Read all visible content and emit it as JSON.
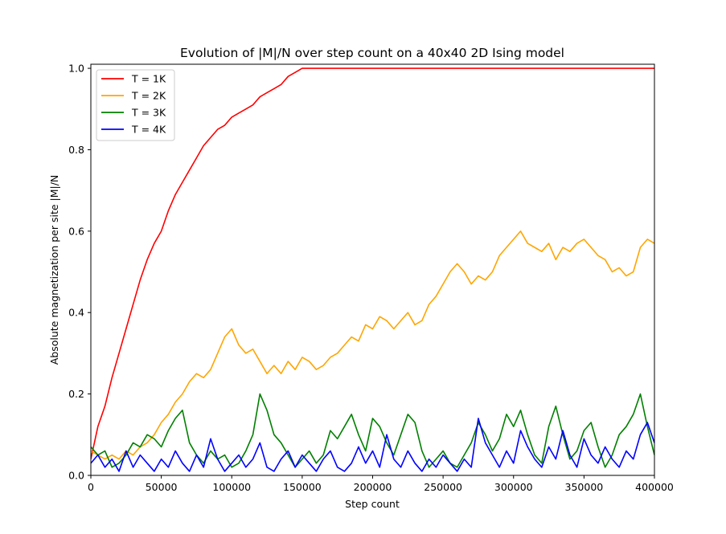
{
  "chart_data": {
    "type": "line",
    "title": "Evolution of |M|/N over step count on a 40x40 2D Ising model",
    "xlabel": "Step count",
    "ylabel": "Absolute magnetization per site |M|/N",
    "xlim": [
      0,
      400000
    ],
    "ylim": [
      0,
      1.01
    ],
    "x_ticks": [
      0,
      50000,
      100000,
      150000,
      200000,
      250000,
      300000,
      350000,
      400000
    ],
    "x_tick_labels": [
      "0",
      "50000",
      "100000",
      "150000",
      "200000",
      "250000",
      "300000",
      "350000",
      "400000"
    ],
    "y_ticks": [
      0.0,
      0.2,
      0.4,
      0.6,
      0.8,
      1.0
    ],
    "y_tick_labels": [
      "0.0",
      "0.2",
      "0.4",
      "0.6",
      "0.8",
      "1.0"
    ],
    "grid": false,
    "legend_position": "top-left",
    "series": [
      {
        "name": "T = 1K",
        "color": "#ff0000",
        "x": [
          0,
          5000,
          10000,
          15000,
          20000,
          25000,
          30000,
          35000,
          40000,
          45000,
          50000,
          55000,
          60000,
          65000,
          70000,
          75000,
          80000,
          85000,
          90000,
          95000,
          100000,
          105000,
          110000,
          115000,
          120000,
          125000,
          130000,
          135000,
          140000,
          145000,
          150000,
          155000,
          160000,
          170000,
          180000,
          200000,
          220000,
          240000,
          260000,
          280000,
          300000,
          320000,
          340000,
          360000,
          380000,
          400000
        ],
        "y": [
          0.04,
          0.12,
          0.17,
          0.24,
          0.3,
          0.36,
          0.42,
          0.48,
          0.53,
          0.57,
          0.6,
          0.65,
          0.69,
          0.72,
          0.75,
          0.78,
          0.81,
          0.83,
          0.85,
          0.86,
          0.88,
          0.89,
          0.9,
          0.91,
          0.93,
          0.94,
          0.95,
          0.96,
          0.98,
          0.99,
          1.0,
          1.0,
          1.0,
          1.0,
          1.0,
          1.0,
          1.0,
          1.0,
          1.0,
          1.0,
          1.0,
          1.0,
          1.0,
          1.0,
          1.0,
          1.0
        ]
      },
      {
        "name": "T = 2K",
        "color": "#ffa500",
        "x": [
          0,
          5000,
          10000,
          15000,
          20000,
          25000,
          30000,
          35000,
          40000,
          45000,
          50000,
          55000,
          60000,
          65000,
          70000,
          75000,
          80000,
          85000,
          90000,
          95000,
          100000,
          105000,
          110000,
          115000,
          120000,
          125000,
          130000,
          135000,
          140000,
          145000,
          150000,
          155000,
          160000,
          165000,
          170000,
          175000,
          180000,
          185000,
          190000,
          195000,
          200000,
          205000,
          210000,
          215000,
          220000,
          225000,
          230000,
          235000,
          240000,
          245000,
          250000,
          255000,
          260000,
          265000,
          270000,
          275000,
          280000,
          285000,
          290000,
          295000,
          300000,
          305000,
          310000,
          315000,
          320000,
          325000,
          330000,
          335000,
          340000,
          345000,
          350000,
          355000,
          360000,
          365000,
          370000,
          375000,
          380000,
          385000,
          390000,
          395000,
          400000
        ],
        "y": [
          0.06,
          0.05,
          0.04,
          0.05,
          0.04,
          0.06,
          0.05,
          0.07,
          0.08,
          0.1,
          0.13,
          0.15,
          0.18,
          0.2,
          0.23,
          0.25,
          0.24,
          0.26,
          0.3,
          0.34,
          0.36,
          0.32,
          0.3,
          0.31,
          0.28,
          0.25,
          0.27,
          0.25,
          0.28,
          0.26,
          0.29,
          0.28,
          0.26,
          0.27,
          0.29,
          0.3,
          0.32,
          0.34,
          0.33,
          0.37,
          0.36,
          0.39,
          0.38,
          0.36,
          0.38,
          0.4,
          0.37,
          0.38,
          0.42,
          0.44,
          0.47,
          0.5,
          0.52,
          0.5,
          0.47,
          0.49,
          0.48,
          0.5,
          0.54,
          0.56,
          0.58,
          0.6,
          0.57,
          0.56,
          0.55,
          0.57,
          0.53,
          0.56,
          0.55,
          0.57,
          0.58,
          0.56,
          0.54,
          0.53,
          0.5,
          0.51,
          0.49,
          0.5,
          0.56,
          0.58,
          0.57
        ]
      },
      {
        "name": "T = 3K",
        "color": "#008000",
        "x": [
          0,
          5000,
          10000,
          15000,
          20000,
          25000,
          30000,
          35000,
          40000,
          45000,
          50000,
          55000,
          60000,
          65000,
          70000,
          75000,
          80000,
          85000,
          90000,
          95000,
          100000,
          105000,
          110000,
          115000,
          120000,
          125000,
          130000,
          135000,
          140000,
          145000,
          150000,
          155000,
          160000,
          165000,
          170000,
          175000,
          180000,
          185000,
          190000,
          195000,
          200000,
          205000,
          210000,
          215000,
          220000,
          225000,
          230000,
          235000,
          240000,
          245000,
          250000,
          255000,
          260000,
          265000,
          270000,
          275000,
          280000,
          285000,
          290000,
          295000,
          300000,
          305000,
          310000,
          315000,
          320000,
          325000,
          330000,
          335000,
          340000,
          345000,
          350000,
          355000,
          360000,
          365000,
          370000,
          375000,
          380000,
          385000,
          390000,
          395000,
          400000
        ],
        "y": [
          0.07,
          0.05,
          0.06,
          0.02,
          0.03,
          0.05,
          0.08,
          0.07,
          0.1,
          0.09,
          0.07,
          0.11,
          0.14,
          0.16,
          0.08,
          0.05,
          0.03,
          0.06,
          0.04,
          0.05,
          0.02,
          0.03,
          0.06,
          0.1,
          0.2,
          0.16,
          0.1,
          0.08,
          0.05,
          0.02,
          0.04,
          0.06,
          0.03,
          0.05,
          0.11,
          0.09,
          0.12,
          0.15,
          0.1,
          0.06,
          0.14,
          0.12,
          0.08,
          0.05,
          0.1,
          0.15,
          0.13,
          0.06,
          0.02,
          0.04,
          0.06,
          0.03,
          0.02,
          0.05,
          0.08,
          0.13,
          0.1,
          0.06,
          0.09,
          0.15,
          0.12,
          0.16,
          0.1,
          0.05,
          0.03,
          0.12,
          0.17,
          0.1,
          0.04,
          0.06,
          0.11,
          0.13,
          0.07,
          0.02,
          0.05,
          0.1,
          0.12,
          0.15,
          0.2,
          0.12,
          0.05
        ]
      },
      {
        "name": "T = 4K",
        "color": "#0000ff",
        "x": [
          0,
          5000,
          10000,
          15000,
          20000,
          25000,
          30000,
          35000,
          40000,
          45000,
          50000,
          55000,
          60000,
          65000,
          70000,
          75000,
          80000,
          85000,
          90000,
          95000,
          100000,
          105000,
          110000,
          115000,
          120000,
          125000,
          130000,
          135000,
          140000,
          145000,
          150000,
          155000,
          160000,
          165000,
          170000,
          175000,
          180000,
          185000,
          190000,
          195000,
          200000,
          205000,
          210000,
          215000,
          220000,
          225000,
          230000,
          235000,
          240000,
          245000,
          250000,
          255000,
          260000,
          265000,
          270000,
          275000,
          280000,
          285000,
          290000,
          295000,
          300000,
          305000,
          310000,
          315000,
          320000,
          325000,
          330000,
          335000,
          340000,
          345000,
          350000,
          355000,
          360000,
          365000,
          370000,
          375000,
          380000,
          385000,
          390000,
          395000,
          400000
        ],
        "y": [
          0.03,
          0.05,
          0.02,
          0.04,
          0.01,
          0.06,
          0.02,
          0.05,
          0.03,
          0.01,
          0.04,
          0.02,
          0.06,
          0.03,
          0.01,
          0.05,
          0.02,
          0.09,
          0.04,
          0.01,
          0.03,
          0.05,
          0.02,
          0.04,
          0.08,
          0.02,
          0.01,
          0.04,
          0.06,
          0.02,
          0.05,
          0.03,
          0.01,
          0.04,
          0.06,
          0.02,
          0.01,
          0.03,
          0.07,
          0.03,
          0.06,
          0.02,
          0.1,
          0.04,
          0.02,
          0.06,
          0.03,
          0.01,
          0.04,
          0.02,
          0.05,
          0.03,
          0.01,
          0.04,
          0.02,
          0.14,
          0.08,
          0.05,
          0.02,
          0.06,
          0.03,
          0.11,
          0.07,
          0.04,
          0.02,
          0.07,
          0.04,
          0.11,
          0.05,
          0.02,
          0.09,
          0.05,
          0.03,
          0.07,
          0.04,
          0.02,
          0.06,
          0.04,
          0.1,
          0.13,
          0.08
        ]
      }
    ]
  }
}
